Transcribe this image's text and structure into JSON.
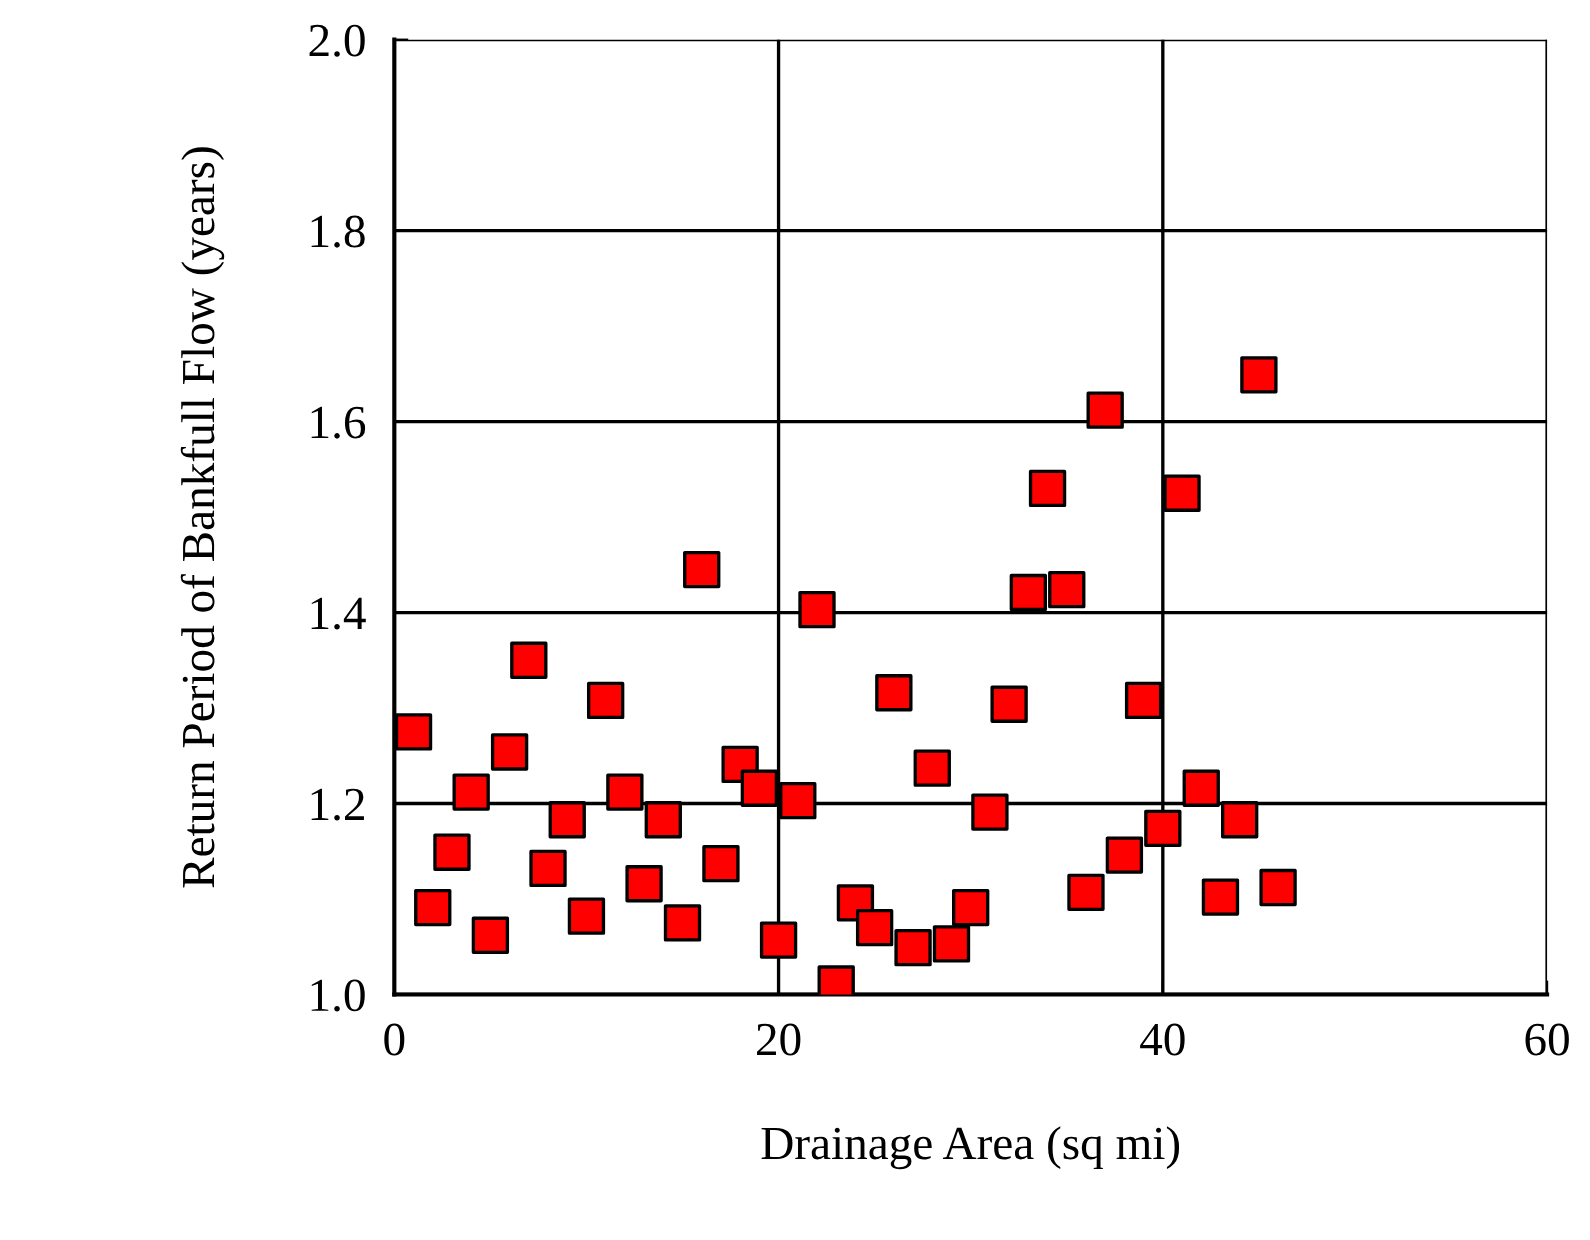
{
  "chart_data": {
    "type": "scatter",
    "xlabel": "Drainage Area (sq mi)",
    "ylabel": "Return Period of Bankfull Flow (years)",
    "x": [
      1,
      2,
      3,
      4,
      5,
      6,
      7,
      8,
      9,
      10,
      11,
      12,
      13,
      14,
      15,
      16,
      17,
      18,
      19,
      20,
      21,
      22,
      23,
      24,
      25,
      26,
      27,
      28,
      29,
      30,
      31,
      32,
      33,
      34,
      35,
      36,
      37,
      38,
      39,
      40,
      41,
      42,
      43,
      44,
      45,
      46
    ],
    "series": [
      {
        "color": "#ff0000",
        "values": [
          1.275,
          1.091,
          1.149,
          1.212,
          1.062,
          1.254,
          1.35,
          1.132,
          1.183,
          1.082,
          1.308,
          1.212,
          1.116,
          1.183,
          1.075,
          1.445,
          1.137,
          1.241,
          1.216,
          1.057,
          1.203,
          1.403,
          1.011,
          1.096,
          1.07,
          1.316,
          1.049,
          1.237,
          1.053,
          1.091,
          1.191,
          1.304,
          1.421,
          1.53,
          1.424,
          1.107,
          1.612,
          1.146,
          1.308,
          1.174,
          1.525,
          1.216,
          1.102,
          1.183,
          1.649,
          1.112
        ]
      }
    ],
    "xlim": [
      0,
      60
    ],
    "xticks": [
      0,
      20,
      40,
      60
    ],
    "ylim": [
      1.0,
      2.0
    ],
    "yticks": [
      {
        "value": 1.0,
        "label": "1.0"
      },
      {
        "value": 1.2,
        "label": "1.2"
      },
      {
        "value": 1.4,
        "label": "1.4"
      },
      {
        "value": 1.6,
        "label": "1.6"
      },
      {
        "value": 1.8,
        "label": "1.8"
      },
      {
        "value": 2.0,
        "label": "2.0"
      }
    ],
    "grid": true,
    "marker": "square",
    "legend": false
  }
}
